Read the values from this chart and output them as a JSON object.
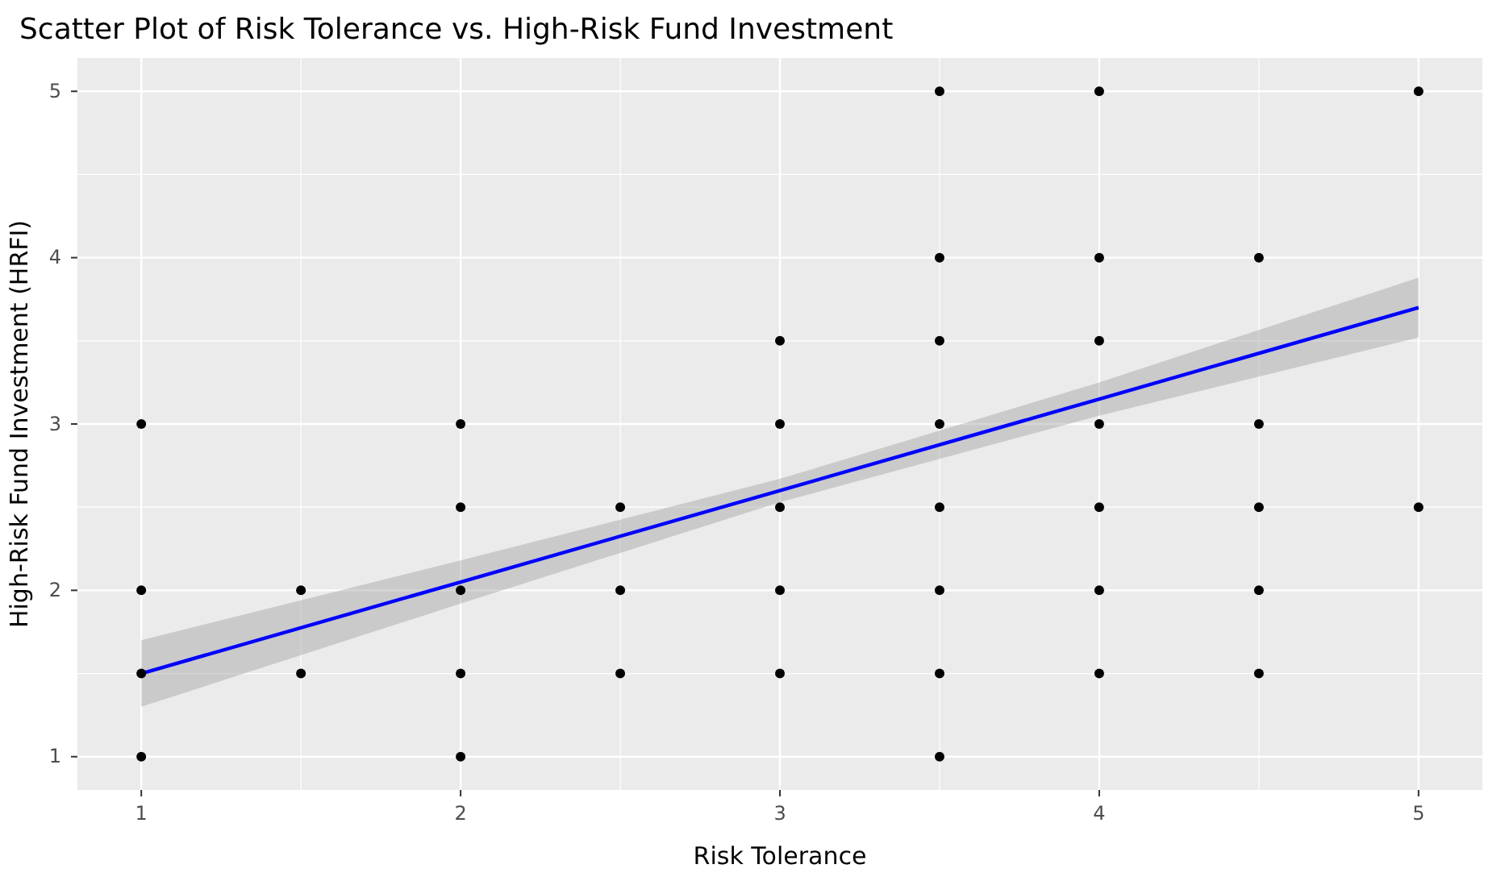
{
  "chart_data": {
    "type": "scatter",
    "title": "Scatter Plot of Risk Tolerance vs. High-Risk Fund Investment",
    "xlabel": "Risk Tolerance",
    "ylabel": "High-Risk Fund Investment (HRFI)",
    "xlim": [
      0.8,
      5.2
    ],
    "ylim": [
      0.8,
      5.2
    ],
    "xticks": [
      1,
      2,
      3,
      4,
      5
    ],
    "yticks": [
      1,
      2,
      3,
      4,
      5
    ],
    "grid": true,
    "series": [
      {
        "marker": "circle",
        "color": "#000000",
        "x": [
          1,
          1,
          1,
          1,
          1.5,
          1.5,
          2,
          2,
          2,
          2,
          2,
          2.5,
          2.5,
          2.5,
          3,
          3,
          3,
          3,
          3,
          3.5,
          3.5,
          3.5,
          3.5,
          3.5,
          3.5,
          3.5,
          3.5,
          4,
          4,
          4,
          4,
          4,
          4,
          4,
          4.5,
          4.5,
          4.5,
          4.5,
          4.5,
          5,
          5
        ],
        "values": [
          3,
          2,
          1.5,
          1,
          2,
          1.5,
          3,
          2.5,
          2,
          1.5,
          1,
          2.5,
          2,
          1.5,
          3.5,
          3,
          2.5,
          2,
          1.5,
          5,
          4,
          3.5,
          3,
          2.5,
          2,
          1.5,
          1,
          5,
          4,
          3.5,
          3,
          2.5,
          2,
          1.5,
          4,
          3,
          2.5,
          2,
          1.5,
          5,
          2.5
        ]
      },
      {
        "type": "line",
        "color": "#0000ff",
        "x": [
          1,
          2,
          3,
          4,
          5
        ],
        "values": [
          1.5,
          2.05,
          2.6,
          3.15,
          3.7
        ],
        "lower": [
          1.3,
          1.92,
          2.53,
          3.05,
          3.52
        ],
        "upper": [
          1.7,
          2.18,
          2.67,
          3.25,
          3.88
        ]
      }
    ]
  }
}
